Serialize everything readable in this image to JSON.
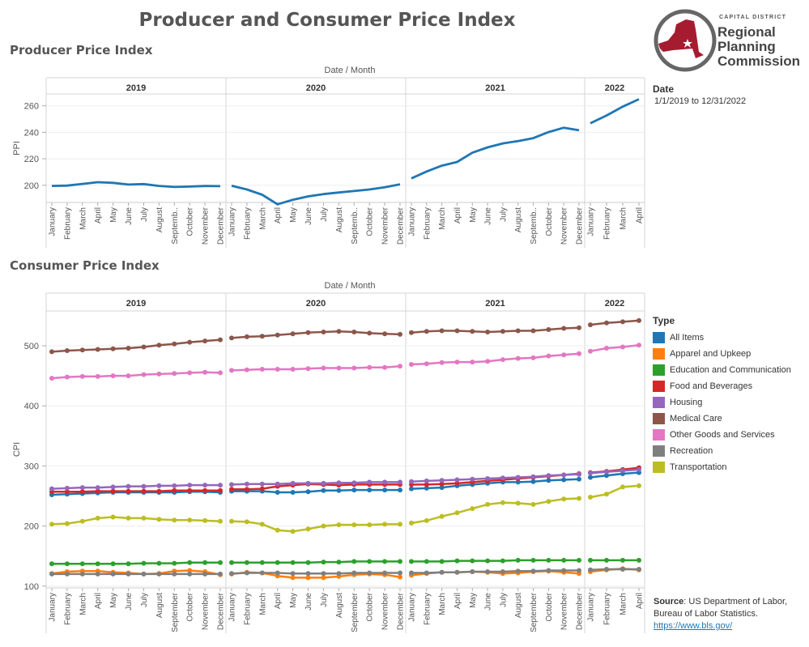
{
  "title": "Producer and Consumer Price Index",
  "logo": {
    "small_text": "CAPITAL DISTRICT",
    "line1": "Regional",
    "line2": "Planning",
    "line3": "Commission"
  },
  "date_filter": {
    "title": "Date",
    "value": "1/1/2019 to 12/31/2022"
  },
  "source": {
    "label": "Source",
    "text": ":  US Department of Labor, Bureau of Labor Statistics.",
    "link": "https://www.bls.gov/"
  },
  "colors": {
    "All Items": "#1f77b4",
    "Apparel and Upkeep": "#ff7f0e",
    "Education and Communication": "#2ca02c",
    "Food and Beverages": "#d62728",
    "Housing": "#9467bd",
    "Medical Care": "#8c564b",
    "Other Goods and Services": "#e377c2",
    "Recreation": "#7f7f7f",
    "Transportation": "#bcbd22"
  },
  "chart_data": [
    {
      "id": "ppi",
      "type": "line",
      "title": "Producer Price Index",
      "header_label": "Date  /  Month",
      "ylabel": "PPI",
      "ylim": [
        187,
        269
      ],
      "yticks": [
        200,
        220,
        240,
        260
      ],
      "markers": false,
      "years": [
        {
          "year": "2019",
          "months": [
            "January",
            "February",
            "March",
            "April",
            "May",
            "June",
            "July",
            "August",
            "Septemb..",
            "October",
            "November",
            "December"
          ]
        },
        {
          "year": "2020",
          "months": [
            "January",
            "February",
            "March",
            "April",
            "May",
            "June",
            "July",
            "August",
            "Septemb..",
            "October",
            "November",
            "December"
          ]
        },
        {
          "year": "2021",
          "months": [
            "January",
            "February",
            "March",
            "April",
            "May",
            "June",
            "July",
            "August",
            "Septemb..",
            "October",
            "November",
            "December"
          ]
        },
        {
          "year": "2022",
          "months": [
            "January",
            "February",
            "March",
            "April"
          ]
        }
      ],
      "series": [
        {
          "name": "PPI",
          "color": "#1f77b4",
          "values": [
            [
              199.5,
              199.7,
              201.0,
              202.3,
              201.8,
              200.5,
              200.9,
              199.5,
              198.7,
              199.0,
              199.4,
              199.3
            ],
            [
              199.6,
              196.8,
              192.8,
              185.6,
              189.0,
              191.6,
              193.3,
              194.5,
              195.6,
              196.8,
              198.5,
              200.7
            ],
            [
              205.2,
              210.4,
              214.8,
              217.6,
              224.6,
              228.6,
              231.6,
              233.4,
              235.6,
              240.2,
              243.5,
              241.5
            ],
            [
              246.8,
              252.7,
              259.4,
              265.0
            ]
          ]
        }
      ]
    },
    {
      "id": "cpi",
      "type": "line",
      "title": "Consumer Price Index",
      "header_label": "Date  /  Month",
      "ylabel": "CPI",
      "ylim": [
        97,
        558
      ],
      "yticks": [
        100,
        200,
        300,
        400,
        500
      ],
      "markers": true,
      "years": [
        {
          "year": "2019",
          "months": [
            "January",
            "February",
            "March",
            "April",
            "May",
            "June",
            "July",
            "August",
            "September",
            "October",
            "November",
            "December"
          ]
        },
        {
          "year": "2020",
          "months": [
            "January",
            "February",
            "March",
            "April",
            "May",
            "June",
            "July",
            "August",
            "September",
            "October",
            "November",
            "December"
          ]
        },
        {
          "year": "2021",
          "months": [
            "January",
            "February",
            "March",
            "April",
            "May",
            "June",
            "July",
            "August",
            "September",
            "October",
            "November",
            "December"
          ]
        },
        {
          "year": "2022",
          "months": [
            "January",
            "February",
            "March",
            "April"
          ]
        }
      ],
      "series": [
        {
          "name": "All Items",
          "color": "#1f77b4",
          "values": [
            [
              252,
              253,
              254,
              255,
              256,
              256,
              256,
              256,
              256,
              257,
              257,
              256
            ],
            [
              258,
              258,
              258,
              256,
              256,
              257,
              259,
              259,
              260,
              260,
              260,
              260
            ],
            [
              262,
              263,
              264,
              267,
              269,
              271,
              273,
              273,
              274,
              276,
              277,
              278
            ],
            [
              281,
              284,
              287,
              289
            ]
          ]
        },
        {
          "name": "Apparel and Upkeep",
          "color": "#ff7f0e",
          "values": [
            [
              121,
              124,
              125,
              125,
              123,
              122,
              120,
              121,
              125,
              126,
              124,
              119
            ],
            [
              120,
              123,
              122,
              117,
              114,
              114,
              114,
              116,
              119,
              120,
              119,
              115
            ],
            [
              118,
              121,
              123,
              123,
              124,
              123,
              121,
              122,
              124,
              125,
              123,
              121
            ],
            [
              124,
              127,
              129,
              127
            ]
          ]
        },
        {
          "name": "Education and Communication",
          "color": "#2ca02c",
          "values": [
            [
              137,
              137,
              137,
              137,
              137,
              137,
              138,
              138,
              138,
              139,
              139,
              139
            ],
            [
              139,
              139,
              139,
              139,
              139,
              139,
              140,
              140,
              141,
              141,
              141,
              141
            ],
            [
              141,
              141,
              141,
              142,
              142,
              142,
              142,
              143,
              143,
              143,
              143,
              143
            ],
            [
              143,
              143,
              143,
              143
            ]
          ]
        },
        {
          "name": "Food and Beverages",
          "color": "#d62728",
          "values": [
            [
              257,
              257,
              257,
              258,
              258,
              258,
              258,
              258,
              259,
              259,
              259,
              259
            ],
            [
              261,
              261,
              262,
              266,
              268,
              270,
              269,
              268,
              269,
              269,
              269,
              269
            ],
            [
              269,
              269,
              270,
              271,
              273,
              275,
              277,
              279,
              281,
              283,
              285,
              287
            ],
            [
              289,
              291,
              294,
              297
            ]
          ]
        },
        {
          "name": "Housing",
          "color": "#9467bd",
          "values": [
            [
              262,
              263,
              264,
              264,
              265,
              266,
              266,
              267,
              267,
              268,
              268,
              268
            ],
            [
              269,
              270,
              270,
              270,
              271,
              271,
              271,
              272,
              272,
              273,
              273,
              273
            ],
            [
              274,
              275,
              276,
              277,
              278,
              279,
              280,
              281,
              282,
              284,
              285,
              286
            ],
            [
              288,
              290,
              292,
              294
            ]
          ]
        },
        {
          "name": "Medical Care",
          "color": "#8c564b",
          "values": [
            [
              490,
              492,
              493,
              494,
              495,
              496,
              498,
              501,
              503,
              506,
              508,
              510
            ],
            [
              513,
              515,
              516,
              518,
              520,
              522,
              523,
              524,
              523,
              521,
              520,
              519
            ],
            [
              522,
              524,
              525,
              525,
              524,
              523,
              524,
              525,
              525,
              527,
              529,
              530
            ],
            [
              535,
              538,
              540,
              542
            ]
          ]
        },
        {
          "name": "Other Goods and Services",
          "color": "#e377c2",
          "values": [
            [
              446,
              448,
              449,
              449,
              450,
              450,
              452,
              453,
              454,
              455,
              456,
              455
            ],
            [
              459,
              460,
              461,
              461,
              461,
              462,
              463,
              463,
              463,
              464,
              464,
              466
            ],
            [
              469,
              470,
              472,
              473,
              473,
              474,
              477,
              479,
              480,
              483,
              485,
              487
            ],
            [
              491,
              496,
              498,
              501
            ]
          ]
        },
        {
          "name": "Recreation",
          "color": "#7f7f7f",
          "values": [
            [
              120,
              120,
              120,
              120,
              120,
              120,
              120,
              120,
              120,
              120,
              120,
              120
            ],
            [
              121,
              122,
              122,
              122,
              121,
              121,
              121,
              121,
              122,
              122,
              122,
              122
            ],
            [
              122,
              122,
              123,
              123,
              124,
              124,
              124,
              125,
              125,
              126,
              126,
              126
            ],
            [
              127,
              128,
              128,
              128
            ]
          ]
        },
        {
          "name": "Transportation",
          "color": "#bcbd22",
          "values": [
            [
              203,
              204,
              208,
              213,
              215,
              213,
              213,
              211,
              210,
              210,
              209,
              208
            ],
            [
              208,
              207,
              203,
              193,
              191,
              195,
              200,
              202,
              202,
              202,
              203,
              203
            ],
            [
              205,
              209,
              216,
              222,
              229,
              236,
              239,
              238,
              236,
              241,
              245,
              246
            ],
            [
              248,
              253,
              265,
              267
            ]
          ]
        }
      ]
    }
  ]
}
